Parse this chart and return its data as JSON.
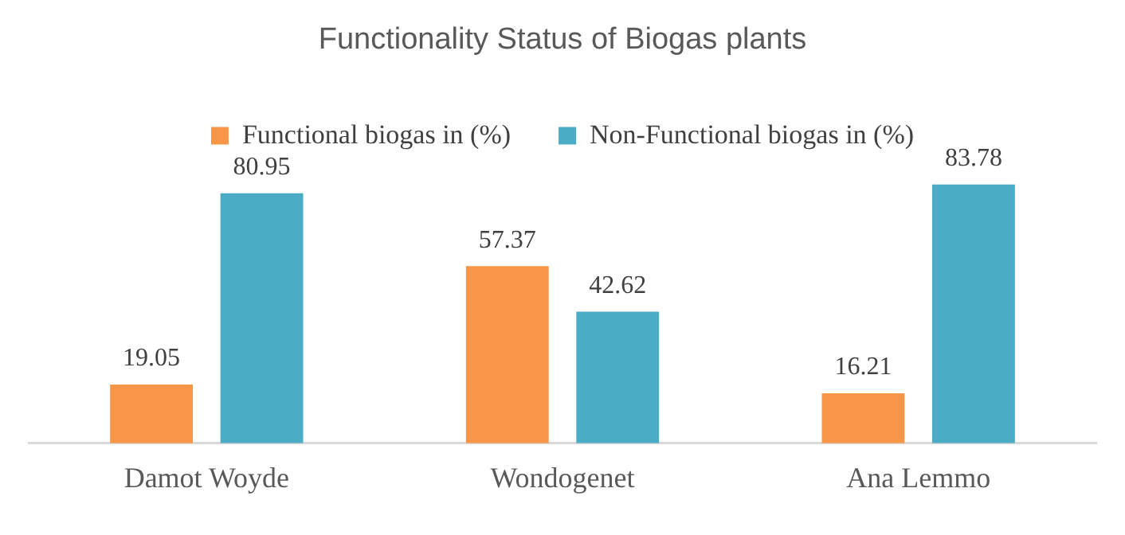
{
  "chart_data": {
    "type": "bar",
    "title": "Functionality Status of Biogas plants",
    "categories": [
      "Damot Woyde",
      "Wondogenet",
      "Ana Lemmo"
    ],
    "series": [
      {
        "name": "Functional biogas in (%)",
        "color": "#f79646",
        "values": [
          19.05,
          57.37,
          16.21
        ]
      },
      {
        "name": "Non-Functional biogas in (%)",
        "color": "#4bacc6",
        "values": [
          80.95,
          42.62,
          83.78
        ]
      }
    ],
    "data_labels": true,
    "legend": "top",
    "grid": false,
    "tick_labels": "x"
  }
}
